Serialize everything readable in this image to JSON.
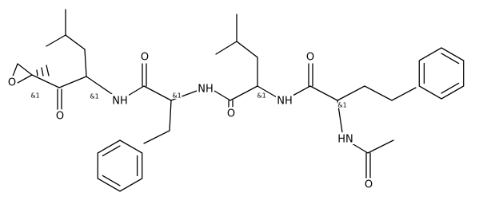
{
  "labels": [
    "O",
    "&1",
    "O",
    "&1",
    "NH",
    "O",
    "&1",
    "NH",
    "O",
    "&1",
    "NH",
    "O",
    "&1",
    "HN",
    "O"
  ]
}
